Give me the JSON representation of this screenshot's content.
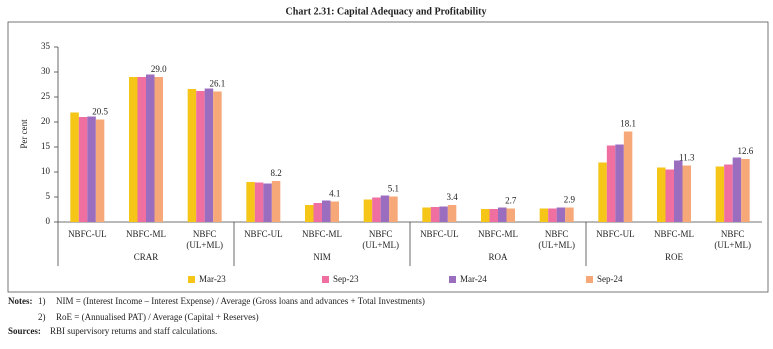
{
  "chart_data": {
    "type": "bar",
    "title": "Chart 2.31: Capital Adequacy and Profitability",
    "y_label": "Per cent",
    "groups": [
      {
        "label": "CRAR",
        "categories": [
          "NBFC-UL",
          "NBFC-ML",
          "NBFC (UL+ML)"
        ]
      },
      {
        "label": "NIM",
        "categories": [
          "NBFC-UL",
          "NBFC-ML",
          "NBFC (UL+ML)"
        ]
      },
      {
        "label": "ROA",
        "categories": [
          "NBFC-UL",
          "NBFC-ML",
          "NBFC (UL+ML)"
        ]
      },
      {
        "label": "ROE",
        "categories": [
          "NBFC-UL",
          "NBFC-ML",
          "NBFC (UL+ML)"
        ]
      }
    ],
    "series": [
      {
        "name": "Mar-23",
        "color": "#f5c518",
        "values": [
          21.9,
          29.0,
          26.6,
          8.0,
          3.4,
          4.5,
          2.9,
          2.6,
          2.7,
          11.9,
          10.9,
          11.1
        ]
      },
      {
        "name": "Sep-23",
        "color": "#ee6fa0",
        "values": [
          21.0,
          29.0,
          26.2,
          7.9,
          3.8,
          4.9,
          3.0,
          2.6,
          2.7,
          15.3,
          10.5,
          11.5
        ]
      },
      {
        "name": "Mar-24",
        "color": "#9b6dbf",
        "values": [
          21.1,
          29.5,
          26.7,
          7.7,
          4.3,
          5.3,
          3.1,
          2.9,
          2.9,
          15.5,
          12.3,
          12.9
        ]
      },
      {
        "name": "Sep-24",
        "color": "#f7a878",
        "values": [
          20.5,
          29.0,
          26.1,
          8.2,
          4.1,
          5.1,
          3.4,
          2.7,
          2.9,
          18.1,
          11.3,
          12.6
        ],
        "value_labels": [
          "20.5",
          "29.0",
          "26.1",
          "8.2",
          "4.1",
          "5.1",
          "3.4",
          "2.7",
          "2.9",
          "18.1",
          "11.3",
          "12.6"
        ]
      }
    ],
    "ylim": [
      0,
      35
    ],
    "yticks": [
      0,
      5,
      10,
      15,
      20,
      25,
      30,
      35
    ],
    "grid": false,
    "notes": {
      "label": "Notes:",
      "items": [
        {
          "number": "1)",
          "text": "NIM = (Interest Income – Interest Expense) / Average (Gross loans and advances + Total Investments)"
        },
        {
          "number": "2)",
          "text": "RoE = (Annualised PAT) / Average (Capital + Reserves)"
        }
      ]
    },
    "source": {
      "label": "Sources:",
      "text": "RBI supervisory returns and staff calculations."
    }
  }
}
